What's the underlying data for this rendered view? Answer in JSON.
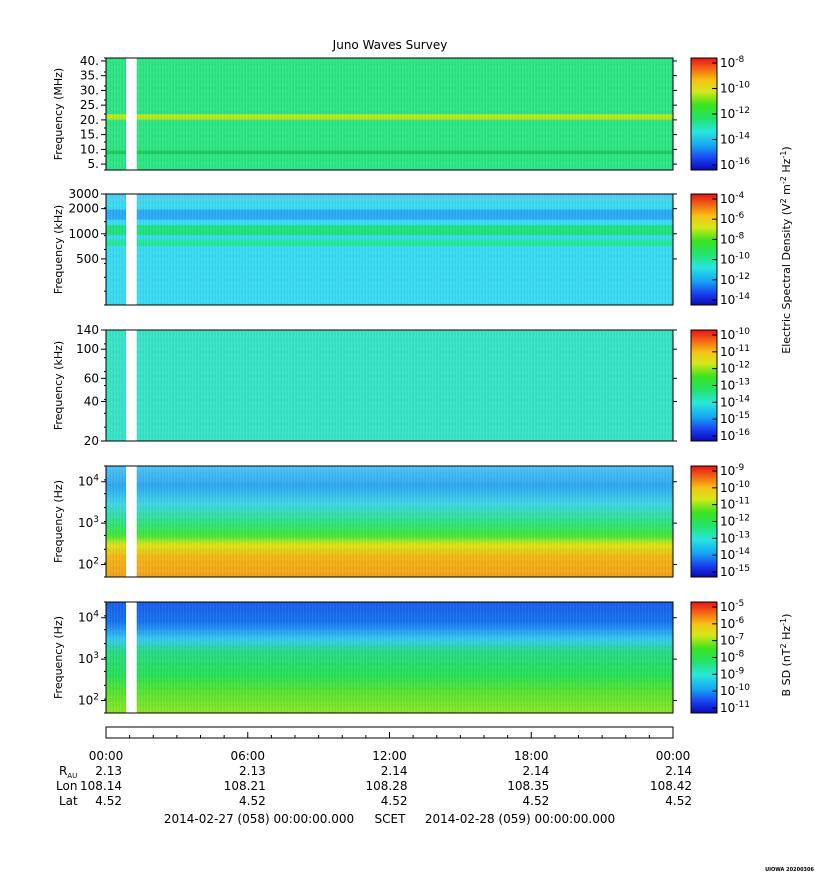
{
  "chart_data": {
    "type": "heatmap",
    "title": "Juno Waves Survey",
    "panels": [
      {
        "name": "hfr-high",
        "ylabel": "Frequency (MHz)",
        "yticks": [
          "40.",
          "35.",
          "30.",
          "25.",
          "20.",
          "15.",
          "10.",
          "5."
        ],
        "ytick_values": [
          40,
          35,
          30,
          25,
          20,
          15,
          10,
          5
        ],
        "ylim": [
          3,
          41
        ],
        "yscale": "linear",
        "base_color": "#2ee383",
        "bands": [
          {
            "y": 21,
            "half_width": 0.9,
            "color": "#b6e817"
          },
          {
            "y": 9,
            "half_width": 0.6,
            "color": "#1cc85a"
          }
        ],
        "colorbar": {
          "exponents": [
            "-8",
            "-10",
            "-12",
            "-14",
            "-16"
          ]
        }
      },
      {
        "name": "hfr-low",
        "ylabel": "Frequency (kHz)",
        "yticks": [
          "3000",
          "2000",
          "1000",
          "500"
        ],
        "ytick_values": [
          3000,
          2000,
          1000,
          500
        ],
        "ylim": [
          140,
          3000
        ],
        "yscale": "log",
        "base_color": "#39d9f0",
        "bands": [
          {
            "y": 2700,
            "half_width": 0.04,
            "color": "#4cd1f2"
          },
          {
            "y": 1700,
            "half_width": 0.06,
            "color": "#2aa8f2"
          },
          {
            "y": 1100,
            "half_width": 0.06,
            "color": "#1ee07c"
          },
          {
            "y": 780,
            "half_width": 0.04,
            "color": "#22e79a"
          }
        ],
        "colorbar": {
          "exponents": [
            "-4",
            "-6",
            "-8",
            "-10",
            "-12",
            "-14"
          ]
        }
      },
      {
        "name": "lfr-high",
        "ylabel": "Frequency (kHz)",
        "yticks": [
          "140",
          "100",
          "60",
          "40",
          "20"
        ],
        "ytick_values": [
          140,
          100,
          60,
          40,
          20
        ],
        "ylim": [
          20,
          140
        ],
        "yscale": "log",
        "base_color": "#37e2c4",
        "bands": [],
        "colorbar": {
          "exponents": [
            "-10",
            "-11",
            "-12",
            "-13",
            "-14",
            "-15",
            "-16"
          ]
        }
      },
      {
        "name": "lfr-low-e",
        "ylabel": "Frequency (Hz)",
        "yticks": [
          "4",
          "3",
          "2"
        ],
        "ytick_values": [
          10000,
          1000,
          100
        ],
        "ylim": [
          50,
          24000
        ],
        "yscale": "log",
        "base_color": "#48c2f2",
        "gradient": [
          {
            "y": 24000,
            "color": "#4cc4f4"
          },
          {
            "y": 8000,
            "color": "#2ea6ee"
          },
          {
            "y": 3000,
            "color": "#3cd4e6"
          },
          {
            "y": 1000,
            "color": "#2ee27c"
          },
          {
            "y": 500,
            "color": "#43e33a"
          },
          {
            "y": 300,
            "color": "#d9e417"
          },
          {
            "y": 150,
            "color": "#f2b314"
          },
          {
            "y": 50,
            "color": "#f0a21c"
          }
        ],
        "colorbar": {
          "exponents": [
            "-9",
            "-10",
            "-11",
            "-12",
            "-13",
            "-14",
            "-15"
          ]
        }
      },
      {
        "name": "lfr-low-b",
        "ylabel": "Frequency (Hz)",
        "yticks": [
          "4",
          "3",
          "2"
        ],
        "ytick_values": [
          10000,
          1000,
          100
        ],
        "ylim": [
          50,
          24000
        ],
        "yscale": "log",
        "base_color": "#28dd6a",
        "gradient": [
          {
            "y": 24000,
            "color": "#1a5ee8"
          },
          {
            "y": 8000,
            "color": "#1570ee"
          },
          {
            "y": 3000,
            "color": "#34c8f0"
          },
          {
            "y": 1500,
            "color": "#27d982"
          },
          {
            "y": 400,
            "color": "#29df56"
          },
          {
            "y": 150,
            "color": "#5be12f"
          },
          {
            "y": 50,
            "color": "#8ae526"
          }
        ],
        "colorbar": {
          "exponents": [
            "-5",
            "-6",
            "-7",
            "-8",
            "-9",
            "-10",
            "-11"
          ]
        }
      }
    ],
    "colorbar_labels": {
      "electric_prefix": "Electric Spectral Density (V",
      "electric_mid": " m",
      "electric_mid2": " Hz",
      "electric_suffix": ")",
      "magnetic_prefix": "B SD (nT",
      "magnetic_mid": " Hz",
      "magnetic_suffix": ")",
      "sup_2": "2",
      "sup_m2": "-2",
      "sup_m1": "-1"
    },
    "data_gap": {
      "start_hour": 0.85,
      "end_hour": 1.3
    },
    "xlim_hours": [
      0,
      24
    ],
    "time_ticks": [
      {
        "label": "00:00",
        "hour": 0
      },
      {
        "label": "06:00",
        "hour": 6
      },
      {
        "label": "12:00",
        "hour": 12
      },
      {
        "label": "18:00",
        "hour": 18
      },
      {
        "label": "00:00",
        "hour": 24
      }
    ],
    "ephemeris": {
      "r_label": "R",
      "r_sub": "AU",
      "lon_label": "Lon",
      "lat_label": "Lat",
      "r_values": [
        "2.13",
        "2.13",
        "2.14",
        "2.14",
        "2.14"
      ],
      "lon_values": [
        "108.14",
        "108.21",
        "108.28",
        "108.35",
        "108.42"
      ],
      "lat_values": [
        "4.52",
        "4.52",
        "4.52",
        "4.52",
        "4.52"
      ]
    },
    "time_range": {
      "start": "2014-02-27 (058) 00:00:00.000",
      "label": "SCET",
      "end": "2014-02-28 (059) 00:00:00.000"
    },
    "stamp": "UIOWA 20200306",
    "base_exponent_label": "10"
  }
}
